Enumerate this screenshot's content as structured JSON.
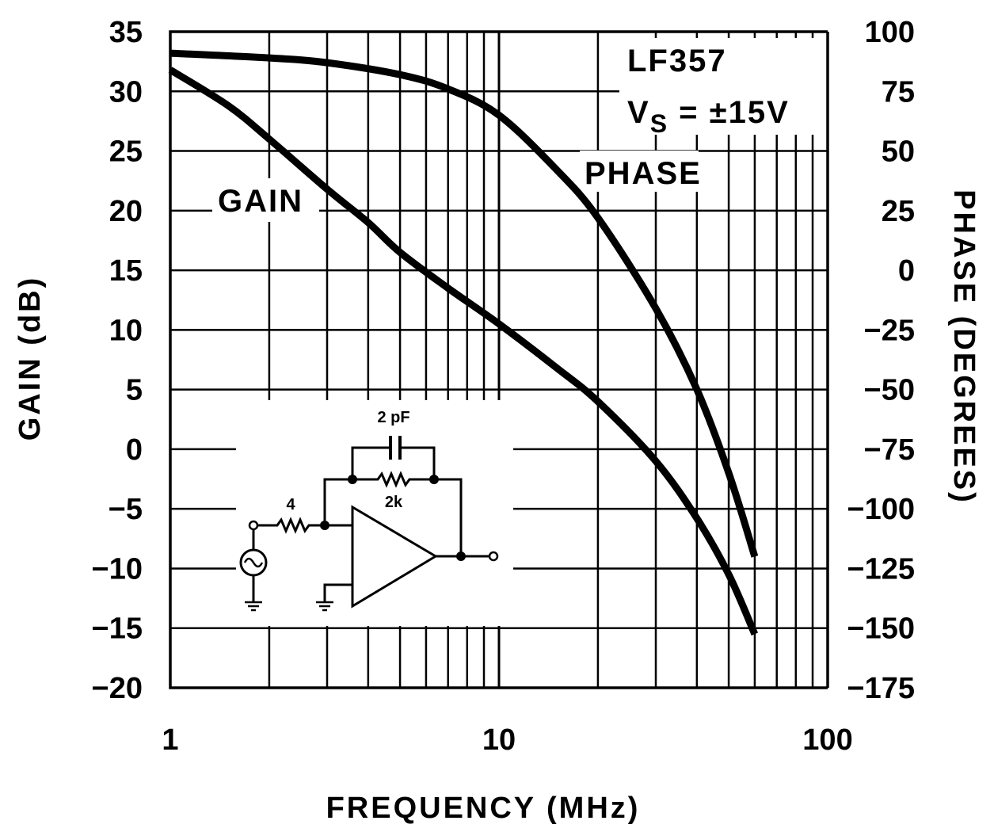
{
  "chart_data": {
    "type": "line",
    "title": "",
    "xlabel": "FREQUENCY (MHz)",
    "ylabel": "GAIN (dB)",
    "y2label": "PHASE (DEGREES)",
    "x_scale": "log",
    "xlim": [
      1,
      100
    ],
    "ylim": [
      -20,
      35
    ],
    "y2lim": [
      -175,
      100
    ],
    "grid": true,
    "x_ticks": [
      "1",
      "10",
      "100"
    ],
    "y_ticks": [
      "35",
      "30",
      "25",
      "20",
      "15",
      "10",
      "5",
      "0",
      "−5",
      "−10",
      "−15",
      "−20"
    ],
    "y2_ticks": [
      "100",
      "75",
      "50",
      "25",
      "0",
      "−25",
      "−50",
      "−75",
      "−100",
      "−125",
      "−150",
      "−175"
    ],
    "series": [
      {
        "name": "GAIN",
        "axis": "left",
        "x": [
          1,
          1.5,
          2,
          3,
          4,
          5,
          7,
          10,
          15,
          20,
          30,
          40,
          50,
          60
        ],
        "y": [
          31.8,
          28.8,
          26,
          21.8,
          19,
          16.5,
          13.5,
          10.5,
          6.8,
          4,
          -1,
          -5.8,
          -10.5,
          -15.5
        ]
      },
      {
        "name": "PHASE",
        "axis": "right",
        "x": [
          1,
          2,
          3,
          5,
          7,
          10,
          15,
          20,
          30,
          40,
          50,
          60
        ],
        "y": [
          91,
          89,
          87,
          82,
          76,
          65,
          42,
          22,
          -16,
          -50,
          -85,
          -120
        ]
      }
    ],
    "annotations": {
      "part": "LF357",
      "supply_main": "V",
      "supply_sub": "S",
      "supply_value": " = ±15V",
      "gain_label": "GAIN",
      "phase_label": "PHASE"
    }
  },
  "circuit": {
    "capacitor": "2 pF",
    "feedback_resistor": "2k",
    "input_resistor": "4"
  }
}
